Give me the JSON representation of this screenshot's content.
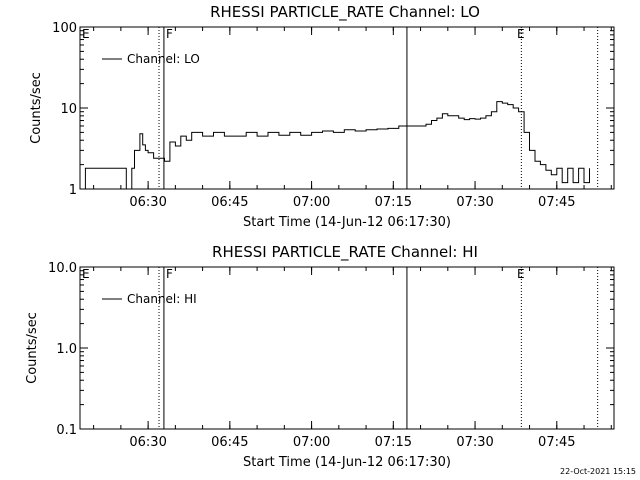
{
  "chart_data": [
    {
      "type": "line",
      "title": "RHESSI PARTICLE_RATE Channel: LO",
      "xlabel": "Start Time (14-Jun-12 06:17:30)",
      "ylabel": "Counts/sec",
      "yscale": "log",
      "ylim": [
        1,
        100
      ],
      "xlim_minutes": [
        6.3,
        7.9
      ],
      "x_ticks": [
        "06:30",
        "06:45",
        "07:00",
        "07:15",
        "07:30",
        "07:45"
      ],
      "y_ticks": [
        "1",
        "10",
        "100"
      ],
      "legend": "top-left",
      "series": [
        {
          "name": "Channel: LO",
          "x": [
            "06:17:30",
            "06:18:30",
            "06:20:00",
            "06:21:30",
            "06:23:00",
            "06:24:30",
            "06:26:00",
            "06:27:00",
            "06:27:30",
            "06:28:30",
            "06:29:00",
            "06:29:30",
            "06:30:00",
            "06:31:00",
            "06:32:00",
            "06:33:00",
            "06:34:00",
            "06:35:00",
            "06:36:00",
            "06:37:00",
            "06:38:00",
            "06:40:00",
            "06:42:00",
            "06:44:00",
            "06:46:00",
            "06:48:00",
            "06:50:00",
            "06:52:00",
            "06:54:00",
            "06:56:00",
            "06:58:00",
            "07:00:00",
            "07:02:00",
            "07:04:00",
            "07:06:00",
            "07:08:00",
            "07:10:00",
            "07:12:00",
            "07:14:00",
            "07:16:00",
            "07:18:00",
            "07:20:00",
            "07:21:00",
            "07:22:00",
            "07:23:00",
            "07:24:00",
            "07:25:00",
            "07:26:00",
            "07:27:00",
            "07:28:00",
            "07:29:00",
            "07:30:00",
            "07:31:00",
            "07:32:00",
            "07:33:00",
            "07:34:00",
            "07:35:00",
            "07:36:00",
            "07:37:00",
            "07:38:00",
            "07:39:00",
            "07:40:00",
            "07:41:00",
            "07:42:00",
            "07:43:00",
            "07:44:00",
            "07:45:00",
            "07:46:00",
            "07:47:00",
            "07:48:00",
            "07:49:00",
            "07:50:00",
            "07:51:00"
          ],
          "y": [
            1,
            1.8,
            1.8,
            1.8,
            1.8,
            1.8,
            1,
            1.8,
            3,
            4.8,
            3.5,
            3,
            2.8,
            2.4,
            2.4,
            2.2,
            3.8,
            3.4,
            4.5,
            4.0,
            5.0,
            4.5,
            5.0,
            4.5,
            4.5,
            5.0,
            4.5,
            5.0,
            4.6,
            5.0,
            4.6,
            5.0,
            5.2,
            5.0,
            5.4,
            5.2,
            5.4,
            5.5,
            5.6,
            6.0,
            6.0,
            6.0,
            6.3,
            7.0,
            7.5,
            8.5,
            8.0,
            8.0,
            7.5,
            7.2,
            7.4,
            7.3,
            7.5,
            8.0,
            9.0,
            12.0,
            11.5,
            11.0,
            10.0,
            9.0,
            5.0,
            3.0,
            2.2,
            2.0,
            1.7,
            1.5,
            1.8,
            1.2,
            1.8,
            1.2,
            1.8,
            1.2,
            1.8
          ]
        }
      ],
      "annotations": [
        "E",
        "F",
        "E"
      ]
    },
    {
      "type": "line",
      "title": "RHESSI PARTICLE_RATE Channel: HI",
      "xlabel": "Start Time (14-Jun-12 06:17:30)",
      "ylabel": "Counts/sec",
      "yscale": "log",
      "ylim": [
        0.1,
        10
      ],
      "x_ticks": [
        "06:30",
        "06:45",
        "07:00",
        "07:15",
        "07:30",
        "07:45"
      ],
      "y_ticks": [
        "0.1",
        "1.0",
        "10.0"
      ],
      "legend": "top-left",
      "series": [
        {
          "name": "Channel: HI",
          "x": [],
          "y": []
        }
      ],
      "annotations": [
        "E",
        "F",
        "E"
      ]
    }
  ],
  "events_minutes_after_start": {
    "dotted_1": 14.5,
    "solid_1": 15.4,
    "solid_2": 60.0,
    "dotted_2": 81.0,
    "dotted_3": 95.0
  },
  "x_ticks_minutes_after_start": [
    12.5,
    27.5,
    42.5,
    57.5,
    72.5,
    87.5
  ],
  "footer_stamp": "22-Oct-2021 15:15"
}
